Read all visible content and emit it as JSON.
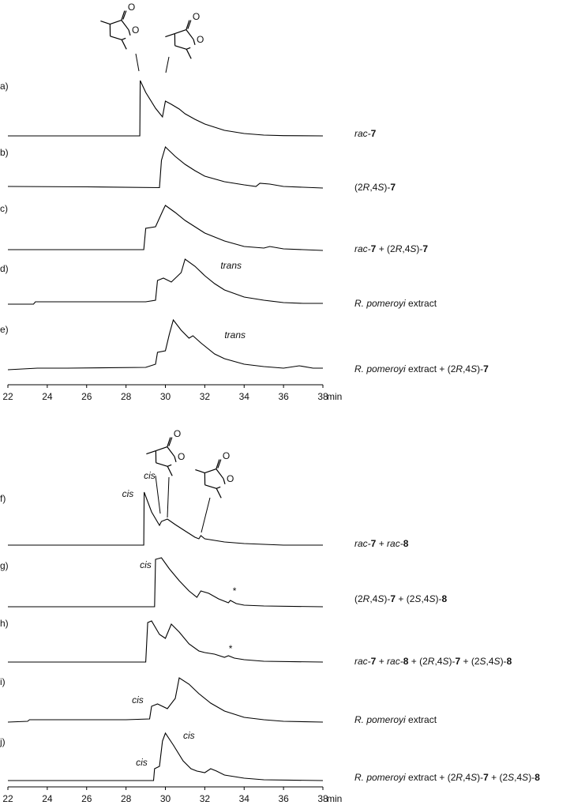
{
  "chart_data": [
    {
      "type": "line",
      "color": "#000000",
      "xlim": [
        22,
        38
      ],
      "xticks": [
        22,
        24,
        26,
        28,
        30,
        32,
        34,
        36,
        38
      ],
      "xlabel": "min",
      "structures": [
        [
          "O",
          "O"
        ],
        [
          "O",
          "O"
        ]
      ],
      "series": [
        {
          "label": "a)",
          "name_parts": [
            {
              "text": "rac-",
              "style": "italic"
            },
            {
              "text": "7",
              "style": "bold"
            }
          ],
          "x": [
            22,
            28.7,
            28.72,
            29,
            29.5,
            29.85,
            30.0,
            30.3,
            30.7,
            31,
            31.5,
            32,
            32.5,
            33,
            33.5,
            34,
            35,
            36,
            38
          ],
          "values": [
            0,
            0,
            70,
            55,
            35,
            24,
            44,
            40,
            34,
            28,
            21,
            15,
            11,
            7,
            5,
            3,
            1,
            0.3,
            0
          ],
          "annotations": []
        },
        {
          "label": "b)",
          "name_parts": [
            {
              "text": "(2",
              "style": "normal"
            },
            {
              "text": "R",
              "style": "italic"
            },
            {
              "text": ",4",
              "style": "normal"
            },
            {
              "text": "S",
              "style": "italic"
            },
            {
              "text": ")-",
              "style": "normal"
            },
            {
              "text": "7",
              "style": "bold"
            }
          ],
          "x": [
            22,
            26,
            29.7,
            29.8,
            30,
            30.5,
            31,
            31.5,
            32,
            33,
            34,
            34.6,
            34.8,
            35.3,
            36,
            37,
            38
          ],
          "values": [
            2,
            1.5,
            0.5,
            35,
            52,
            40,
            30,
            22,
            15,
            8,
            4,
            2,
            6,
            5,
            2,
            1,
            0
          ],
          "annotations": []
        },
        {
          "label": "c)",
          "name_parts": [
            {
              "text": "rac-",
              "style": "italic"
            },
            {
              "text": "7",
              "style": "bold"
            },
            {
              "text": " + (2",
              "style": "normal"
            },
            {
              "text": "R",
              "style": "italic"
            },
            {
              "text": ",4",
              "style": "normal"
            },
            {
              "text": "S",
              "style": "italic"
            },
            {
              "text": ")-",
              "style": "normal"
            },
            {
              "text": "7",
              "style": "bold"
            }
          ],
          "x": [
            22,
            28.9,
            29.0,
            29.5,
            29.9,
            30.0,
            30.5,
            31,
            31.5,
            32,
            33,
            34,
            35,
            35.3,
            36,
            38
          ],
          "values": [
            1,
            1,
            28,
            30,
            52,
            57,
            48,
            38,
            30,
            22,
            12,
            5,
            3,
            5,
            2,
            0
          ],
          "annotations": []
        },
        {
          "label": "d)",
          "name_parts": [
            {
              "text": "R. pomeroyi",
              "style": "italic"
            },
            {
              "text": " extract",
              "style": "normal"
            }
          ],
          "x": [
            22,
            23.3,
            23.4,
            25,
            29,
            29.5,
            29.6,
            29.9,
            30.3,
            30.8,
            31.0,
            31.5,
            32,
            32.5,
            33,
            34,
            35,
            36,
            37,
            38
          ],
          "values": [
            0,
            0,
            3,
            3,
            3,
            5,
            30,
            33,
            28,
            40,
            57,
            48,
            36,
            26,
            18,
            9,
            5,
            2,
            1,
            1
          ],
          "annotations": [
            {
              "text": "trans",
              "x": 32.8,
              "y": 48
            }
          ]
        },
        {
          "label": "e)",
          "name_parts": [
            {
              "text": "R. pomeroyi",
              "style": "italic"
            },
            {
              "text": " extract + (2",
              "style": "normal"
            },
            {
              "text": "R",
              "style": "italic"
            },
            {
              "text": ",4",
              "style": "normal"
            },
            {
              "text": "S",
              "style": "italic"
            },
            {
              "text": ")-",
              "style": "normal"
            },
            {
              "text": "7",
              "style": "bold"
            }
          ],
          "x": [
            22,
            23.5,
            25,
            29,
            29.5,
            29.6,
            30.0,
            30.2,
            30.4,
            30.8,
            31.2,
            31.4,
            31.8,
            32.5,
            33,
            34,
            35,
            36,
            36.8,
            37.5,
            38
          ],
          "values": [
            0,
            2,
            2,
            3,
            7,
            22,
            24,
            45,
            63,
            50,
            40,
            43,
            34,
            20,
            14,
            7,
            4,
            2,
            5,
            2,
            2
          ],
          "annotations": [
            {
              "text": "trans",
              "x": 33.0,
              "y": 43
            }
          ]
        }
      ]
    },
    {
      "type": "line",
      "color": "#000000",
      "xlim": [
        22,
        38
      ],
      "xticks": [
        22,
        24,
        26,
        28,
        30,
        32,
        34,
        36,
        38
      ],
      "xlabel": "min",
      "structures": [
        [
          "O",
          "O"
        ],
        [
          "O",
          "O"
        ]
      ],
      "series": [
        {
          "label": "f)",
          "name_parts": [
            {
              "text": "rac-",
              "style": "italic"
            },
            {
              "text": "7",
              "style": "bold"
            },
            {
              "text": " + ",
              "style": "normal"
            },
            {
              "text": "rac-",
              "style": "italic"
            },
            {
              "text": "8",
              "style": "bold"
            }
          ],
          "x": [
            22,
            28.9,
            28.92,
            29.3,
            29.7,
            29.8,
            30.1,
            30.5,
            31,
            31.5,
            31.7,
            31.8,
            32,
            32.5,
            33,
            34,
            35,
            36,
            38
          ],
          "values": [
            0,
            0,
            67,
            42,
            25,
            30,
            33,
            26,
            18,
            10,
            8,
            12,
            8,
            6,
            4,
            2,
            1,
            0,
            0
          ],
          "annotations": [
            {
              "text": "cis",
              "x": 27.8,
              "y": 64
            },
            {
              "text": "cis",
              "x": 28.9,
              "y": 87
            }
          ]
        },
        {
          "label": "g)",
          "name_parts": [
            {
              "text": "(2",
              "style": "normal"
            },
            {
              "text": "R",
              "style": "italic"
            },
            {
              "text": ",4",
              "style": "normal"
            },
            {
              "text": "S",
              "style": "italic"
            },
            {
              "text": ")-",
              "style": "normal"
            },
            {
              "text": "7",
              "style": "bold"
            },
            {
              "text": " + (2",
              "style": "normal"
            },
            {
              "text": "S",
              "style": "italic"
            },
            {
              "text": ",4",
              "style": "normal"
            },
            {
              "text": "S",
              "style": "italic"
            },
            {
              "text": ")-",
              "style": "normal"
            },
            {
              "text": "8",
              "style": "bold"
            }
          ],
          "x": [
            22,
            29.45,
            29.5,
            29.8,
            30.2,
            30.7,
            31.2,
            31.6,
            31.8,
            32.2,
            32.7,
            33.2,
            33.3,
            33.6,
            34,
            35,
            38
          ],
          "values": [
            0,
            0,
            60,
            62,
            48,
            33,
            20,
            12,
            20,
            17,
            10,
            5,
            8,
            4,
            2,
            1,
            0
          ],
          "annotations": [
            {
              "text": "cis",
              "x": 28.7,
              "y": 52
            },
            {
              "text": "*",
              "x": 33.4,
              "y": 19
            }
          ]
        },
        {
          "label": "h)",
          "name_parts": [
            {
              "text": "rac-",
              "style": "italic"
            },
            {
              "text": "7",
              "style": "bold"
            },
            {
              "text": " + ",
              "style": "normal"
            },
            {
              "text": "rac-",
              "style": "italic"
            },
            {
              "text": "8",
              "style": "bold"
            },
            {
              "text": " + (2",
              "style": "normal"
            },
            {
              "text": "R",
              "style": "italic"
            },
            {
              "text": ",4",
              "style": "normal"
            },
            {
              "text": "S",
              "style": "italic"
            },
            {
              "text": ")-",
              "style": "normal"
            },
            {
              "text": "7",
              "style": "bold"
            },
            {
              "text": " + (2",
              "style": "normal"
            },
            {
              "text": "S",
              "style": "italic"
            },
            {
              "text": ",4",
              "style": "normal"
            },
            {
              "text": "S",
              "style": "italic"
            },
            {
              "text": ")-",
              "style": "normal"
            },
            {
              "text": "8",
              "style": "bold"
            }
          ],
          "x": [
            22,
            29.0,
            29.1,
            29.3,
            29.7,
            30.0,
            30.3,
            30.7,
            31.2,
            31.7,
            32,
            32.5,
            33,
            33.2,
            33.5,
            34,
            35,
            38
          ],
          "values": [
            0,
            0,
            50,
            52,
            35,
            30,
            48,
            38,
            23,
            14,
            12,
            10,
            6,
            8,
            5,
            3,
            1,
            0
          ],
          "annotations": [
            {
              "text": "*",
              "x": 33.2,
              "y": 16
            }
          ]
        },
        {
          "label": "i)",
          "name_parts": [
            {
              "text": "R. pomeroyi",
              "style": "italic"
            },
            {
              "text": " extract",
              "style": "normal"
            }
          ],
          "x": [
            22,
            23.0,
            23.1,
            25,
            28,
            29.2,
            29.3,
            29.6,
            30.1,
            30.5,
            30.7,
            31.2,
            31.7,
            32.3,
            33,
            34,
            35,
            36,
            38
          ],
          "values": [
            0,
            1,
            3,
            3,
            3,
            4,
            20,
            23,
            17,
            30,
            56,
            48,
            36,
            24,
            14,
            6,
            3,
            1,
            0
          ],
          "annotations": [
            {
              "text": "cis",
              "x": 28.3,
              "y": 27
            }
          ]
        },
        {
          "label": "j)",
          "name_parts": [
            {
              "text": "R. pomeroyi",
              "style": "italic"
            },
            {
              "text": " extract + (2",
              "style": "normal"
            },
            {
              "text": "R",
              "style": "italic"
            },
            {
              "text": ",4",
              "style": "normal"
            },
            {
              "text": "S",
              "style": "italic"
            },
            {
              "text": ")-",
              "style": "normal"
            },
            {
              "text": "7",
              "style": "bold"
            },
            {
              "text": " + (2",
              "style": "normal"
            },
            {
              "text": "S",
              "style": "italic"
            },
            {
              "text": ",4",
              "style": "normal"
            },
            {
              "text": "S",
              "style": "italic"
            },
            {
              "text": ")-",
              "style": "normal"
            },
            {
              "text": "8",
              "style": "bold"
            }
          ],
          "x": [
            22,
            29.4,
            29.45,
            29.7,
            29.85,
            30.0,
            30.4,
            30.9,
            31.3,
            31.6,
            32.0,
            32.3,
            32.6,
            33,
            34,
            35,
            38
          ],
          "values": [
            0,
            0,
            15,
            18,
            50,
            60,
            45,
            25,
            15,
            12,
            10,
            15,
            12,
            7,
            3,
            1,
            0
          ],
          "annotations": [
            {
              "text": "cis",
              "x": 28.5,
              "y": 22
            },
            {
              "text": "cis",
              "x": 30.9,
              "y": 56
            }
          ]
        }
      ]
    }
  ]
}
